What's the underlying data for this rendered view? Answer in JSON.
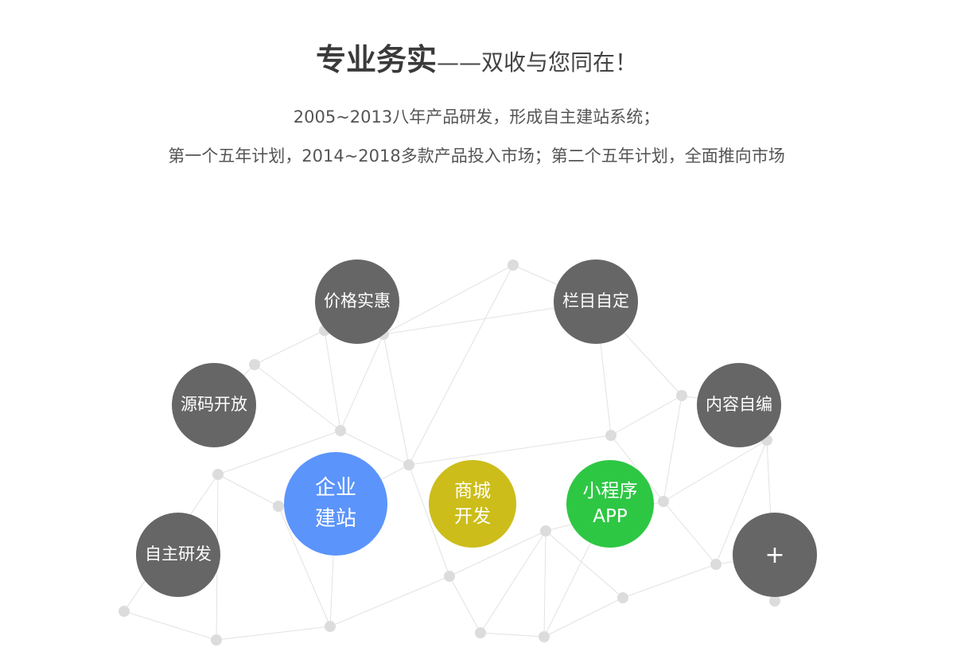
{
  "heading": {
    "bold": "专业务实",
    "rest": "——双收与您同在！"
  },
  "lines": [
    "2005~2013八年产品研发，形成自主建站系统；",
    "第一个五年计划，2014~2018多款产品投入市场；第二个五年计划，全面推向市场"
  ],
  "features": [
    {
      "label": "价格实惠",
      "color": "#666666"
    },
    {
      "label": "栏目自定",
      "color": "#666666"
    },
    {
      "label": "源码开放",
      "color": "#666666"
    },
    {
      "label": "内容自编",
      "color": "#666666"
    },
    {
      "label": "自主研发",
      "color": "#666666"
    },
    {
      "label": "+",
      "color": "#666666"
    }
  ],
  "products": [
    {
      "line1": "企业",
      "line2": "建站",
      "color": "#5b94fb"
    },
    {
      "line1": "商城",
      "line2": "开发",
      "color": "#ccbd1a"
    },
    {
      "line1": "小程序",
      "line2": "APP",
      "color": "#2ec744"
    }
  ]
}
